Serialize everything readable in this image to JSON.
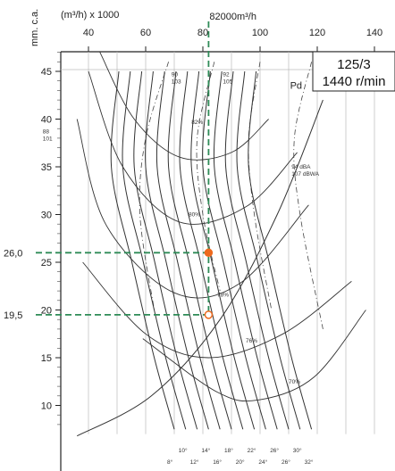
{
  "chart_data": {
    "type": "line",
    "title": "125/3",
    "subtitle": "1440 r/min",
    "xlabel": "(m³/h) x 1000",
    "ylabel": "mm. c.a.",
    "xlim": [
      20,
      150
    ],
    "ylim": [
      7,
      47
    ],
    "x_ticks": [
      "40",
      "60",
      "80",
      "100",
      "120",
      "140"
    ],
    "y_ticks": [
      "10",
      "15",
      "20",
      "25",
      "30",
      "35",
      "40",
      "45"
    ],
    "grid": "vertical",
    "operating_flow_label": "82000m³/h",
    "operating_flow": 82,
    "operating_points": [
      {
        "label": "26,0",
        "x": 82,
        "y": 26.0
      },
      {
        "label": "19,5",
        "x": 82,
        "y": 19.5
      }
    ],
    "power_curve_label": "Pd",
    "efficiency_labels": [
      "82%",
      "80%",
      "78%",
      "76%",
      "70%"
    ],
    "noise_labels": [
      {
        "lines": [
          "88",
          "101"
        ],
        "x": 24,
        "y": 38.5
      },
      {
        "lines": [
          "90",
          "103"
        ],
        "x": 69,
        "y": 44.5
      },
      {
        "lines": [
          "92",
          "105"
        ],
        "x": 87,
        "y": 44.5
      },
      {
        "lines": [
          "94 dBA",
          "107 dBWA"
        ],
        "x": 111,
        "y": 34.8
      }
    ],
    "angle_labels": [
      "8°",
      "10°",
      "12°",
      "14°",
      "16°",
      "18°",
      "20°",
      "22°",
      "24°",
      "26°",
      "26°",
      "30°",
      "32°"
    ],
    "series": [
      {
        "label": "8°",
        "points": [
          [
            50.64,
            45
          ],
          [
            48,
            35
          ],
          [
            55.2,
            25
          ],
          [
            63,
            15
          ],
          [
            70,
            7.5
          ]
        ]
      },
      {
        "label": "10°",
        "points": [
          [
            54.64,
            45
          ],
          [
            52,
            35
          ],
          [
            59.2,
            25
          ],
          [
            67,
            15
          ],
          [
            74,
            7.5
          ]
        ]
      },
      {
        "label": "12°",
        "points": [
          [
            58.64,
            45
          ],
          [
            56,
            35
          ],
          [
            63.2,
            25
          ],
          [
            71,
            15
          ],
          [
            78,
            7.5
          ]
        ]
      },
      {
        "label": "14°",
        "points": [
          [
            62.64,
            45
          ],
          [
            60,
            35
          ],
          [
            67.2,
            25
          ],
          [
            75,
            15
          ],
          [
            82,
            7.5
          ]
        ]
      },
      {
        "label": "16°",
        "points": [
          [
            66.64,
            45
          ],
          [
            64,
            35
          ],
          [
            71.2,
            25
          ],
          [
            79,
            15
          ],
          [
            86,
            7.5
          ]
        ]
      },
      {
        "label": "18°",
        "points": [
          [
            70.64,
            45
          ],
          [
            68,
            35
          ],
          [
            75.2,
            25
          ],
          [
            83,
            15
          ],
          [
            90,
            7.5
          ]
        ]
      },
      {
        "label": "20°",
        "points": [
          [
            74.64,
            45
          ],
          [
            72,
            35
          ],
          [
            79.2,
            25
          ],
          [
            87,
            15
          ],
          [
            94,
            7.5
          ]
        ]
      },
      {
        "label": "22°",
        "points": [
          [
            78.64,
            45
          ],
          [
            76,
            35
          ],
          [
            83.2,
            25
          ],
          [
            91,
            15
          ],
          [
            98,
            7.5
          ]
        ]
      },
      {
        "label": "24°",
        "points": [
          [
            82.64,
            45
          ],
          [
            80,
            35
          ],
          [
            87.2,
            25
          ],
          [
            95,
            15
          ],
          [
            102,
            7.5
          ]
        ]
      },
      {
        "label": "26°",
        "points": [
          [
            86.64,
            45
          ],
          [
            84,
            35
          ],
          [
            91.2,
            25
          ],
          [
            99,
            15
          ],
          [
            106,
            7.5
          ]
        ]
      },
      {
        "label": "26°",
        "points": [
          [
            90.64,
            45
          ],
          [
            88,
            35
          ],
          [
            95.2,
            25
          ],
          [
            103,
            15
          ],
          [
            110,
            7.5
          ]
        ]
      },
      {
        "label": "30°",
        "points": [
          [
            94.64,
            45
          ],
          [
            92,
            35
          ],
          [
            99.2,
            25
          ],
          [
            107,
            15
          ],
          [
            114,
            7.5
          ]
        ]
      },
      {
        "label": "32°",
        "points": [
          [
            98.64,
            45
          ],
          [
            96,
            35
          ],
          [
            103.2,
            25
          ],
          [
            111,
            15
          ],
          [
            118,
            7.5
          ]
        ]
      }
    ]
  }
}
